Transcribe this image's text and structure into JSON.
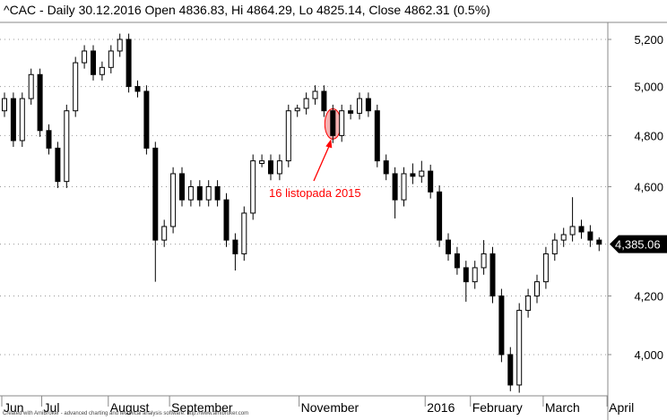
{
  "title": "^CAC - Daily 30.12.2016 Open 4836.83, Hi 4864.29, Lo 4825.14, Close 4862.31 (0.5%)",
  "footer": "Created with AmiBroker - advanced charting and technical analysis software. http://www.amibroker.com",
  "colors": {
    "up_fill": "#ffffff",
    "down_fill": "#000000",
    "grid": "#999999",
    "annotation": "#ff0000",
    "annotation_fill": "#f4b0b0"
  },
  "chart_data": {
    "type": "candlestick",
    "scale": "log",
    "ylim": [
      3850,
      5320
    ],
    "yticks": [
      4000,
      4200,
      4600,
      4800,
      5000,
      5200
    ],
    "ytick_labels": [
      "4,000",
      "4,200",
      "4,600",
      "4,800",
      "5,000",
      "5,200"
    ],
    "grid": true,
    "last_price_label": "4,385.06",
    "last_price": 4385.06,
    "xtick_labels": [
      {
        "label": "Jun",
        "index": 0
      },
      {
        "label": "Jul",
        "index": 4.5
      },
      {
        "label": "August",
        "index": 12
      },
      {
        "label": "September",
        "index": 18.9
      },
      {
        "label": "November",
        "index": 33.5
      },
      {
        "label": "2016",
        "index": 47.7
      },
      {
        "label": "February",
        "index": 52.8
      },
      {
        "label": "March",
        "index": 61
      },
      {
        "label": "April",
        "index": 68.2
      }
    ],
    "annotation": {
      "text": "16 listopada 2015",
      "index": 37
    },
    "ohlc": [
      [
        4900,
        4975,
        4875,
        4950
      ],
      [
        4950,
        4975,
        4755,
        4780
      ],
      [
        4780,
        4975,
        4755,
        4950
      ],
      [
        4950,
        5075,
        4925,
        5050
      ],
      [
        5050,
        5075,
        4795,
        4820
      ],
      [
        4820,
        4845,
        4725,
        4750
      ],
      [
        4750,
        4775,
        4595,
        4620
      ],
      [
        4620,
        4925,
        4595,
        4900
      ],
      [
        4900,
        5125,
        4875,
        5100
      ],
      [
        5100,
        5175,
        5075,
        5150
      ],
      [
        5150,
        5175,
        5025,
        5050
      ],
      [
        5050,
        5105,
        5025,
        5080
      ],
      [
        5080,
        5175,
        5055,
        5150
      ],
      [
        5150,
        5225,
        5125,
        5200
      ],
      [
        5200,
        5225,
        4975,
        5000
      ],
      [
        5000,
        5025,
        4955,
        4980
      ],
      [
        4980,
        5005,
        4725,
        4750
      ],
      [
        4750,
        4775,
        4250,
        4400
      ],
      [
        4400,
        4475,
        4375,
        4450
      ],
      [
        4450,
        4675,
        4425,
        4650
      ],
      [
        4650,
        4675,
        4525,
        4550
      ],
      [
        4550,
        4625,
        4525,
        4600
      ],
      [
        4600,
        4625,
        4525,
        4550
      ],
      [
        4550,
        4625,
        4525,
        4600
      ],
      [
        4600,
        4625,
        4525,
        4550
      ],
      [
        4550,
        4575,
        4375,
        4400
      ],
      [
        4400,
        4425,
        4290,
        4350
      ],
      [
        4350,
        4525,
        4325,
        4500
      ],
      [
        4500,
        4725,
        4475,
        4700
      ],
      [
        4690,
        4725,
        4675,
        4700
      ],
      [
        4700,
        4725,
        4625,
        4650
      ],
      [
        4650,
        4725,
        4625,
        4700
      ],
      [
        4700,
        4925,
        4675,
        4900
      ],
      [
        4900,
        4925,
        4875,
        4910
      ],
      [
        4910,
        4975,
        4885,
        4950
      ],
      [
        4950,
        5005,
        4925,
        4980
      ],
      [
        4980,
        5005,
        4875,
        4900
      ],
      [
        4900,
        4925,
        4770,
        4800
      ],
      [
        4800,
        4925,
        4775,
        4900
      ],
      [
        4900,
        4925,
        4865,
        4890
      ],
      [
        4890,
        4975,
        4865,
        4950
      ],
      [
        4950,
        4975,
        4875,
        4900
      ],
      [
        4900,
        4925,
        4675,
        4700
      ],
      [
        4700,
        4725,
        4625,
        4650
      ],
      [
        4650,
        4675,
        4480,
        4550
      ],
      [
        4550,
        4675,
        4525,
        4650
      ],
      [
        4650,
        4690,
        4610,
        4640
      ],
      [
        4640,
        4700,
        4615,
        4660
      ],
      [
        4660,
        4685,
        4555,
        4580
      ],
      [
        4580,
        4605,
        4375,
        4400
      ],
      [
        4400,
        4425,
        4325,
        4350
      ],
      [
        4350,
        4375,
        4275,
        4300
      ],
      [
        4300,
        4325,
        4180,
        4250
      ],
      [
        4250,
        4325,
        4225,
        4300
      ],
      [
        4300,
        4400,
        4275,
        4350
      ],
      [
        4350,
        4375,
        4175,
        4200
      ],
      [
        4200,
        4225,
        3975,
        4000
      ],
      [
        4000,
        4025,
        3880,
        3900
      ],
      [
        3900,
        4175,
        3875,
        4150
      ],
      [
        4150,
        4225,
        4125,
        4200
      ],
      [
        4200,
        4275,
        4175,
        4250
      ],
      [
        4250,
        4375,
        4225,
        4350
      ],
      [
        4350,
        4425,
        4325,
        4400
      ],
      [
        4400,
        4445,
        4375,
        4420
      ],
      [
        4420,
        4560,
        4395,
        4450
      ],
      [
        4450,
        4475,
        4405,
        4430
      ],
      [
        4430,
        4455,
        4375,
        4400
      ],
      [
        4400,
        4410,
        4360,
        4385.06
      ]
    ]
  }
}
